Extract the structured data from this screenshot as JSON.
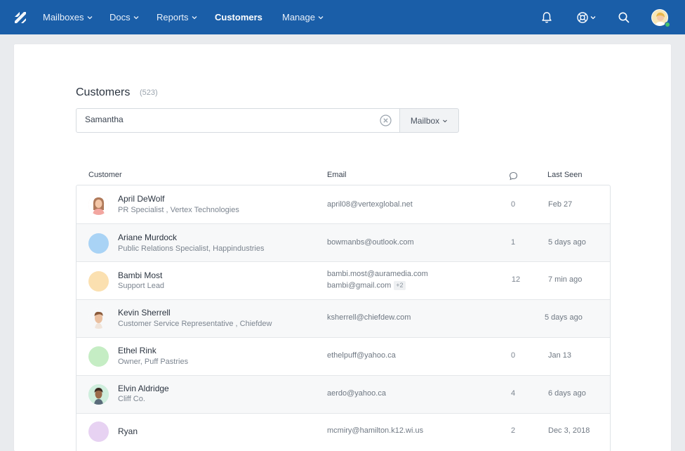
{
  "nav": {
    "items": [
      {
        "label": "Mailboxes",
        "dropdown": true
      },
      {
        "label": "Docs",
        "dropdown": true
      },
      {
        "label": "Reports",
        "dropdown": true
      },
      {
        "label": "Customers",
        "dropdown": false,
        "active": true
      },
      {
        "label": "Manage",
        "dropdown": true
      }
    ],
    "icons": [
      "logo-icon",
      "bell-icon",
      "help-icon",
      "search-icon",
      "user-avatar"
    ],
    "color": "#1a5ea8"
  },
  "page": {
    "title": "Customers",
    "count": "(523)"
  },
  "search": {
    "value": "Samantha",
    "placeholder": "",
    "mailbox_label": "Mailbox"
  },
  "table": {
    "headers": {
      "customer": "Customer",
      "email": "Email",
      "conversations_icon": "chat-bubble-icon",
      "last_seen": "Last Seen"
    },
    "rows": [
      {
        "name": "April DeWolf",
        "subtitle": "PR Specialist , Vertex Technologies",
        "emails": [
          "april08@vertexglobal.net"
        ],
        "more": "",
        "conversations": "0",
        "last_seen": "Feb 27",
        "avatar": "illustrated",
        "avatar_color": "#f4d9d0"
      },
      {
        "name": "Ariane Murdock",
        "subtitle": "Public Relations Specialist, Happindustries",
        "emails": [
          "bowmanbs@outlook.com"
        ],
        "more": "",
        "conversations": "1",
        "last_seen": "5 days ago",
        "avatar": "solid",
        "avatar_color": "#a9d3f5"
      },
      {
        "name": "Bambi Most",
        "subtitle": "Support Lead",
        "emails": [
          "bambi.most@auramedia.com",
          "bambi@gmail.com"
        ],
        "more": "+2",
        "conversations": "12",
        "last_seen": "7 min ago",
        "avatar": "solid",
        "avatar_color": "#fbe0b0"
      },
      {
        "name": "Kevin Sherrell",
        "subtitle": "Customer Service Representative , Chiefdew",
        "emails": [
          "ksherrell@chiefdew.com"
        ],
        "more": "",
        "conversations": "",
        "last_seen": "5 days ago",
        "avatar": "illustrated",
        "avatar_color": "#f1ddd0"
      },
      {
        "name": "Ethel Rink",
        "subtitle": "Owner, Puff Pastries",
        "emails": [
          "ethelpuff@yahoo.ca"
        ],
        "more": "",
        "conversations": "0",
        "last_seen": "Jan 13",
        "avatar": "solid",
        "avatar_color": "#c5edc4"
      },
      {
        "name": "Elvin Aldridge",
        "subtitle": "Cliff Co.",
        "emails": [
          "aerdo@yahoo.ca"
        ],
        "more": "",
        "conversations": "4",
        "last_seen": "6 days ago",
        "avatar": "illustrated",
        "avatar_color": "#cfeedd"
      },
      {
        "name": "Ryan",
        "subtitle": "",
        "emails": [
          "mcmiry@hamilton.k12.wi.us"
        ],
        "more": "",
        "conversations": "2",
        "last_seen": "Dec 3, 2018",
        "avatar": "solid",
        "avatar_color": "#e7d2f2"
      }
    ]
  }
}
